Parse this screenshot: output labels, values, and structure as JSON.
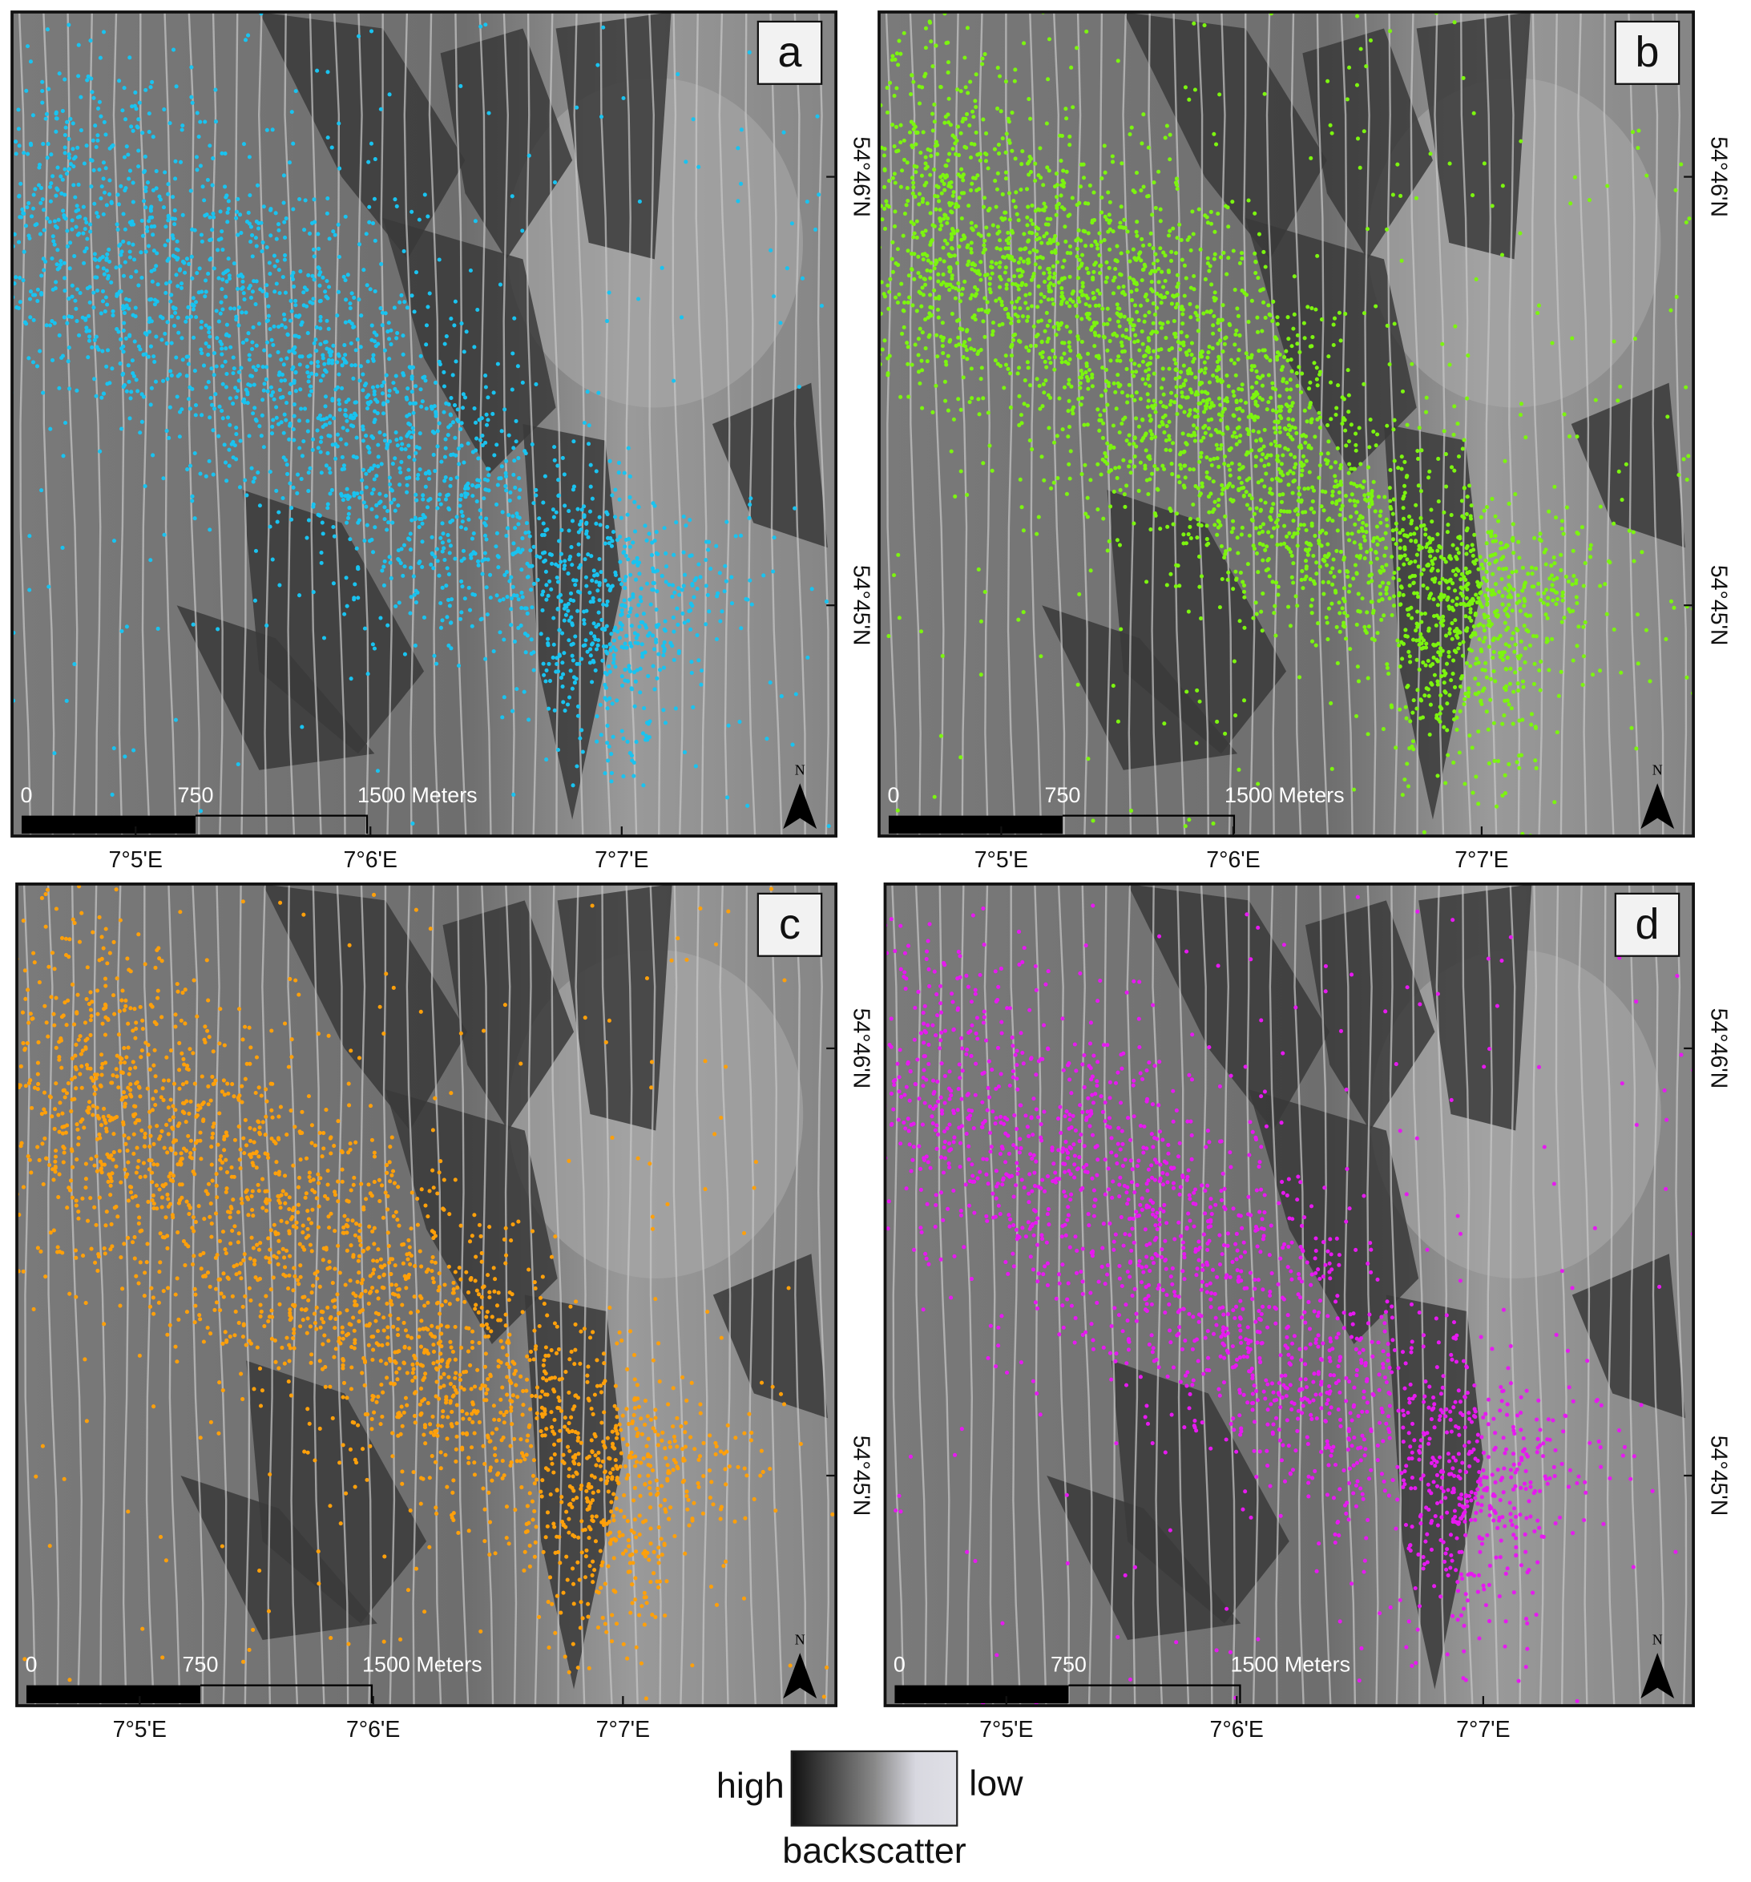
{
  "panels": [
    {
      "label": "a",
      "color": "#19c3f0"
    },
    {
      "label": "b",
      "color": "#7cf50f"
    },
    {
      "label": "c",
      "color": "#ffa00a"
    },
    {
      "label": "d",
      "color": "#e619f0"
    }
  ],
  "scale_bar": {
    "labels": [
      "0",
      "750",
      "1500 Meters"
    ]
  },
  "north": "N",
  "longitudes": [
    "7°5'E",
    "7°6'E",
    "7°7'E"
  ],
  "latitudes": [
    "54°46'N",
    "54°45'N"
  ],
  "legend": {
    "high": "high",
    "low": "low",
    "title": "backscatter"
  }
}
